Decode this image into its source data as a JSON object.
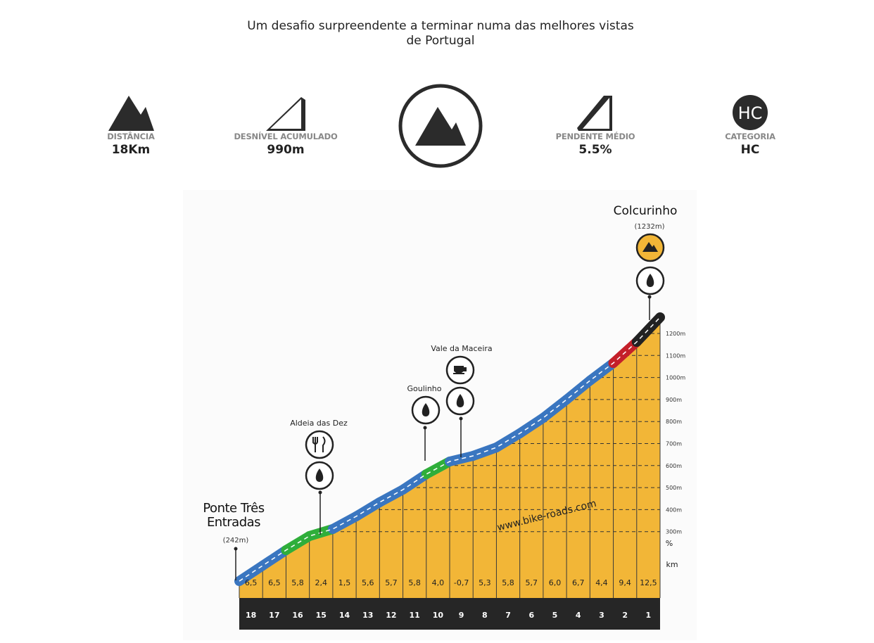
{
  "header": {
    "title": "Um desafio surpreendente a terminar numa das melhores vistas de Portugal"
  },
  "stats": [
    {
      "label": "DISTÂNCIA",
      "value": "18Km"
    },
    {
      "label": "DESNÍVEL ACUMULADO",
      "value": "990m"
    },
    {
      "label": "PENDENTE MÉDIO",
      "value": "5.5%"
    },
    {
      "label": "CATEGORIA",
      "value": "HC",
      "badge": "HC"
    }
  ],
  "profile": {
    "start": {
      "name": "Ponte Três Entradas",
      "elevation": "(242m)"
    },
    "summit": {
      "name": "Colcurinho",
      "elevation": "(1232m)"
    },
    "waypoints": [
      "Aldeia das Dez",
      "Goulinho",
      "Vale da Maceira"
    ],
    "website": "www.bike-roads.com",
    "altitude_ticks": [
      "1200m",
      "1100m",
      "1000m",
      "900m",
      "800m",
      "700m",
      "600m",
      "500m",
      "400m",
      "300m"
    ],
    "gradient_unit": "%",
    "km_unit": "km",
    "km": [
      "18",
      "17",
      "16",
      "15",
      "14",
      "13",
      "12",
      "11",
      "10",
      "9",
      "8",
      "7",
      "6",
      "5",
      "4",
      "3",
      "2",
      "1"
    ],
    "gradients": [
      "6,5",
      "6,5",
      "5,8",
      "2,4",
      "1,5",
      "5,6",
      "5,7",
      "5,8",
      "4,0",
      "-0,7",
      "5,3",
      "5,8",
      "5,7",
      "6,0",
      "6,7",
      "4,4",
      "9,4",
      "12,5"
    ]
  }
}
